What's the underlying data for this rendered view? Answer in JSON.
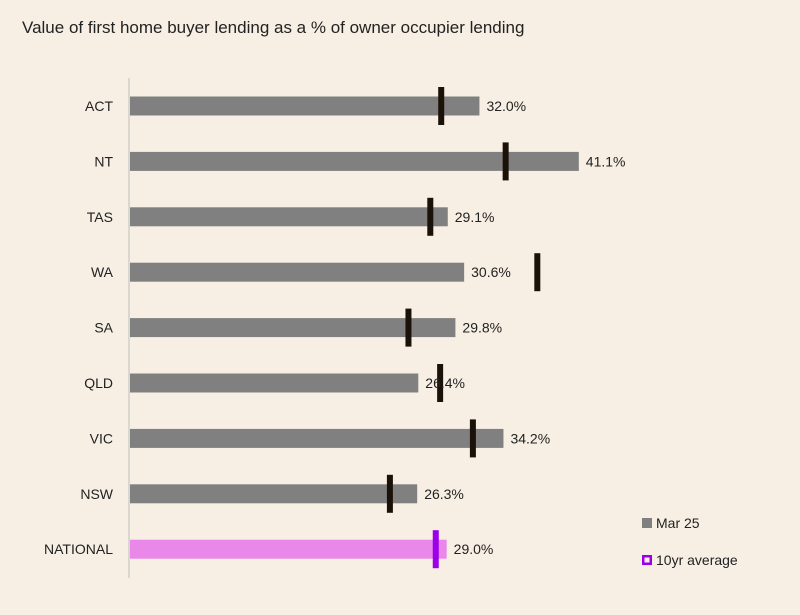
{
  "chart_data": {
    "type": "bar",
    "orientation": "horizontal",
    "title": "Value of first home buyer lending as a % of owner occupier lending",
    "xlabel": "",
    "ylabel": "",
    "grid": false,
    "xlim": [
      0,
      45
    ],
    "categories": [
      "ACT",
      "NT",
      "TAS",
      "WA",
      "SA",
      "QLD",
      "VIC",
      "NSW",
      "NATIONAL"
    ],
    "series": [
      {
        "name": "Mar 25",
        "values": [
          32.0,
          41.1,
          29.1,
          30.6,
          29.8,
          26.4,
          34.2,
          26.3,
          29.0
        ],
        "labels": [
          "32.0%",
          "41.1%",
          "29.1%",
          "30.6%",
          "29.8%",
          "26.4%",
          "34.2%",
          "26.3%",
          "29.0%"
        ]
      },
      {
        "name": "10yr average",
        "values": [
          28.5,
          34.4,
          27.5,
          37.3,
          25.5,
          28.4,
          31.4,
          23.8,
          28.0
        ]
      }
    ],
    "legend": {
      "position": "bottom-right",
      "items": [
        {
          "label": "Mar 25",
          "marker": "square"
        },
        {
          "label": "10yr average",
          "marker": "hollow-square"
        }
      ]
    },
    "colors": {
      "bar": "#808080",
      "highlight_bar": "#ea88ea",
      "marker": "#1a1208",
      "highlight_marker": "#9b00e8",
      "axis": "#bdbdbd",
      "background": "#f7efe4"
    },
    "highlight_category": "NATIONAL"
  }
}
